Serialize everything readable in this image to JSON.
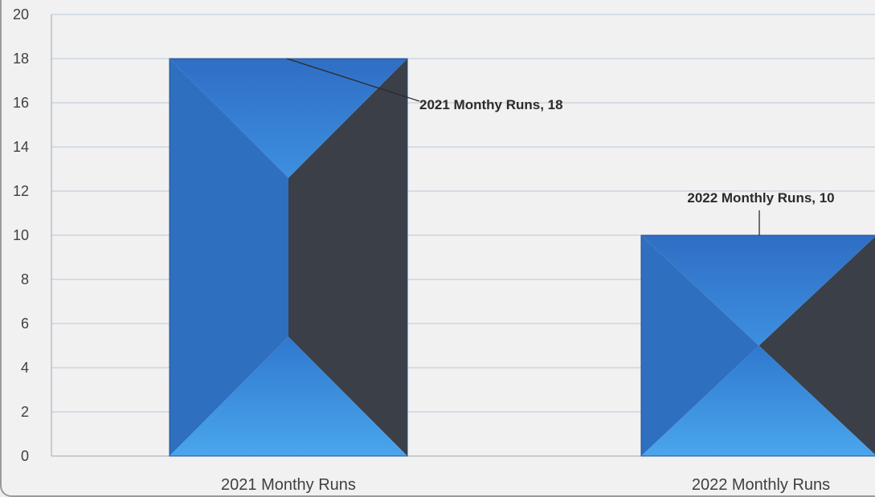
{
  "chart_data": {
    "type": "bar",
    "title": "",
    "categories": [
      "2021 Monthy Runs",
      "2022 Monthly Runs"
    ],
    "values": [
      18,
      10
    ],
    "data_labels": [
      "2021 Monthy Runs, 18",
      "2022 Monthly Runs, 10"
    ],
    "ylim": [
      0,
      20
    ],
    "y_ticks": [
      0,
      2,
      4,
      6,
      8,
      10,
      12,
      14,
      16,
      18,
      20
    ],
    "xlabel": "",
    "ylabel": "",
    "grid": true,
    "legend": "none",
    "colors": {
      "bar_light": "#3f93e0",
      "bar_mid": "#2f6fbf",
      "bar_dark": "#3a3f48",
      "grid": "#b9c8d6",
      "axis": "#9aa6b2"
    }
  }
}
